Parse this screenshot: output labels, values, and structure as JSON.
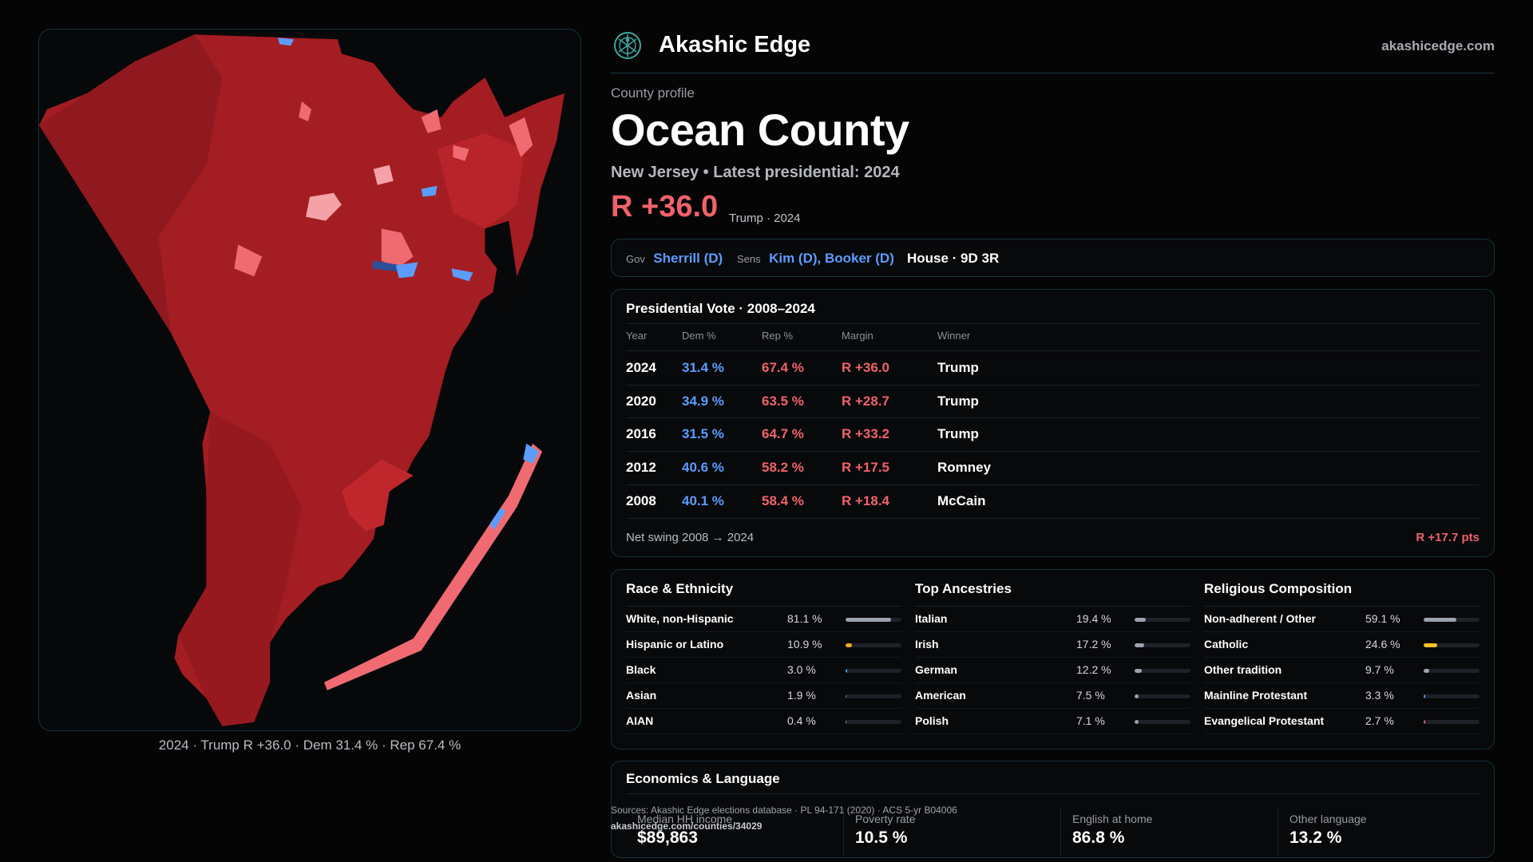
{
  "map": {
    "caption": "2024 · Trump R +36.0 · Dem 31.4 % · Rep 67.4 %",
    "colors": {
      "rep_dark": "#a31d22",
      "rep_mid": "#c92b30",
      "rep_light": "#f06a72",
      "rep_pale": "#f4a2a8",
      "dem": "#5c9cff",
      "dem_dark": "#2c4f9a"
    }
  },
  "header": {
    "brand": "Akashic Edge",
    "domain": "akashicedge.com",
    "logo_icon": "globe-icon"
  },
  "profile": {
    "kicker": "County profile",
    "title": "Ocean County",
    "subtitle": "New Jersey • Latest presidential: 2024",
    "margin": "R +36.0",
    "margin_note": "Trump · 2024"
  },
  "officials": {
    "gov_label": "Gov",
    "gov": "Sherrill (D)",
    "sens_label": "Sens",
    "sens": "Kim (D), Booker (D)",
    "house": "House · 9D 3R"
  },
  "presidential": {
    "title": "Presidential Vote · 2008–2024",
    "columns": [
      "Year",
      "Dem %",
      "Rep %",
      "Margin",
      "Winner"
    ],
    "rows": [
      {
        "year": "2024",
        "dem": "31.4 %",
        "rep": "67.4 %",
        "margin": "R +36.0",
        "winner": "Trump"
      },
      {
        "year": "2020",
        "dem": "34.9 %",
        "rep": "63.5 %",
        "margin": "R +28.7",
        "winner": "Trump"
      },
      {
        "year": "2016",
        "dem": "31.5 %",
        "rep": "64.7 %",
        "margin": "R +33.2",
        "winner": "Trump"
      },
      {
        "year": "2012",
        "dem": "40.6 %",
        "rep": "58.2 %",
        "margin": "R +17.5",
        "winner": "Romney"
      },
      {
        "year": "2008",
        "dem": "40.1 %",
        "rep": "58.4 %",
        "margin": "R +18.4",
        "winner": "McCain"
      }
    ],
    "swing_label": "Net swing 2008 → 2024",
    "swing_value": "R +17.7 pts"
  },
  "race": {
    "title": "Race & Ethnicity",
    "items": [
      {
        "label": "White, non-Hispanic",
        "pct": "81.1 %",
        "value": 81.1,
        "color": "#9da3ae"
      },
      {
        "label": "Hispanic or Latino",
        "pct": "10.9 %",
        "value": 10.9,
        "color": "#f2a81d"
      },
      {
        "label": "Black",
        "pct": "3.0 %",
        "value": 3.0,
        "color": "#5c9cff"
      },
      {
        "label": "Asian",
        "pct": "1.9 %",
        "value": 1.9,
        "color": "#3fb68b"
      },
      {
        "label": "AIAN",
        "pct": "0.4 %",
        "value": 0.4,
        "color": "#9da3ae"
      }
    ]
  },
  "ancestry": {
    "title": "Top Ancestries",
    "items": [
      {
        "label": "Italian",
        "pct": "19.4 %",
        "value": 19.4,
        "color": "#9da3ae"
      },
      {
        "label": "Irish",
        "pct": "17.2 %",
        "value": 17.2,
        "color": "#9da3ae"
      },
      {
        "label": "German",
        "pct": "12.2 %",
        "value": 12.2,
        "color": "#9da3ae"
      },
      {
        "label": "American",
        "pct": "7.5 %",
        "value": 7.5,
        "color": "#9da3ae"
      },
      {
        "label": "Polish",
        "pct": "7.1 %",
        "value": 7.1,
        "color": "#9da3ae"
      }
    ]
  },
  "religion": {
    "title": "Religious Composition",
    "items": [
      {
        "label": "Non-adherent / Other",
        "pct": "59.1 %",
        "value": 59.1,
        "color": "#9da3ae"
      },
      {
        "label": "Catholic",
        "pct": "24.6 %",
        "value": 24.6,
        "color": "#f2c12e"
      },
      {
        "label": "Other tradition",
        "pct": "9.7 %",
        "value": 9.7,
        "color": "#9da3ae"
      },
      {
        "label": "Mainline Protestant",
        "pct": "3.3 %",
        "value": 3.3,
        "color": "#5c9cff"
      },
      {
        "label": "Evangelical Protestant",
        "pct": "2.7 %",
        "value": 2.7,
        "color": "#f0626a"
      }
    ]
  },
  "economics": {
    "title": "Economics & Language",
    "stats": [
      {
        "label": "Median HH income",
        "value": "$89,863"
      },
      {
        "label": "Poverty rate",
        "value": "10.5 %"
      },
      {
        "label": "English at home",
        "value": "86.8 %"
      },
      {
        "label": "Other language",
        "value": "13.2 %"
      }
    ]
  },
  "footer": {
    "sources": "Sources: Akashic Edge elections database · PL 94-171 (2020) · ACS 5-yr B04006",
    "url": "akashicedge.com/counties/34029"
  }
}
